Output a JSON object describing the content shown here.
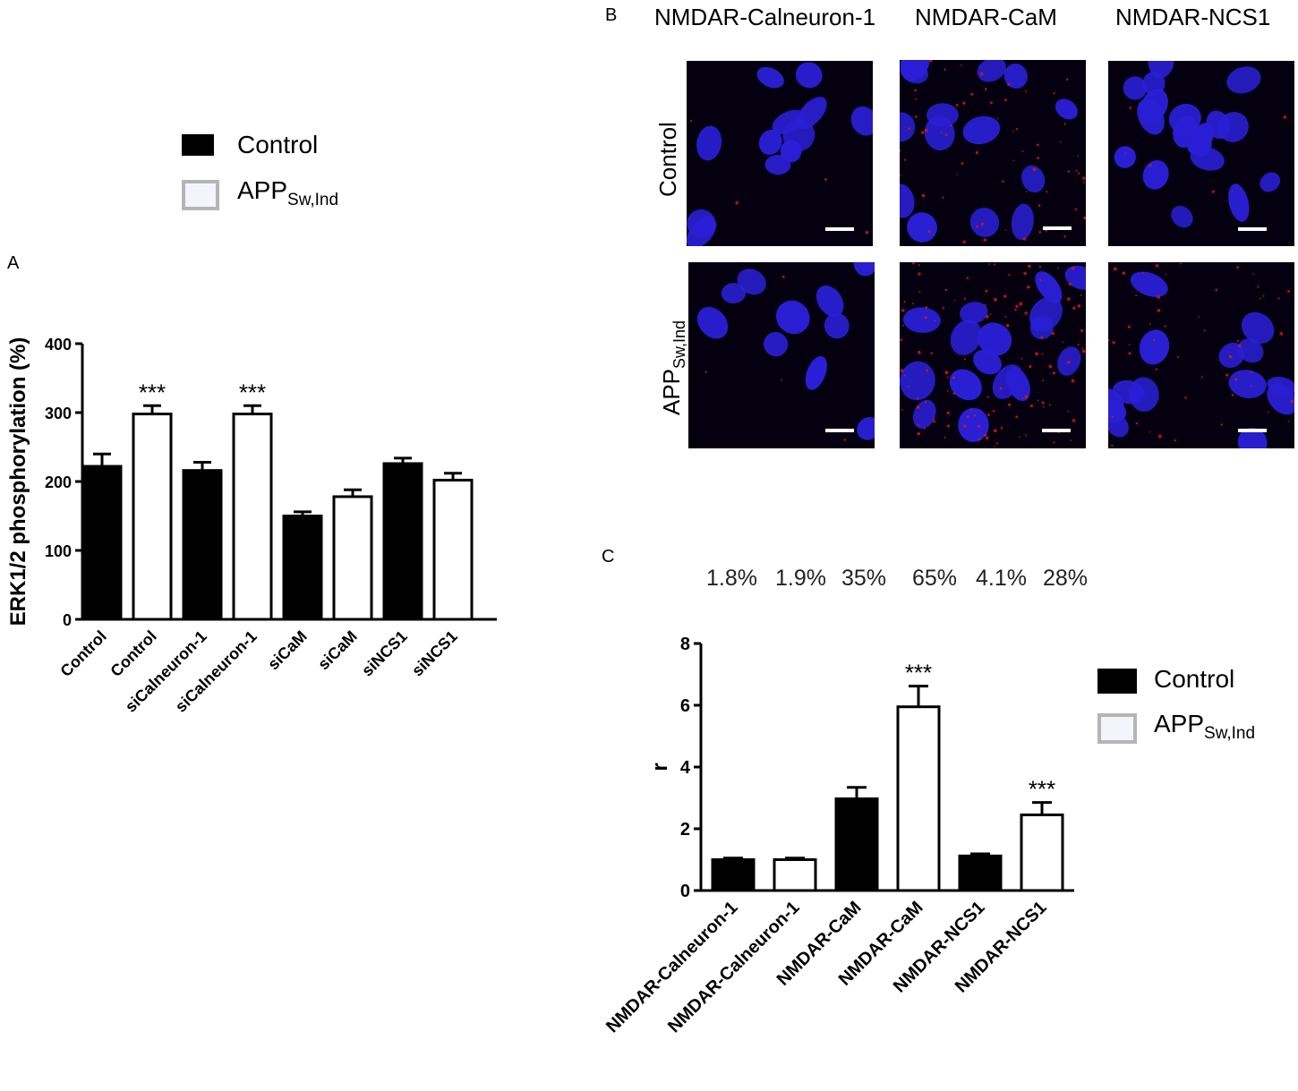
{
  "panels": {
    "a_letter": "A",
    "b_letter": "B",
    "c_letter": "C"
  },
  "legend": {
    "control": "Control",
    "app_main": "APP",
    "app_sub": "Sw,Ind",
    "control_color": "#000000",
    "app_fill": "#f4f4fb",
    "app_border": "#b5b5b5"
  },
  "images": {
    "columns": [
      "NMDAR-Calneuron-1",
      "NMDAR-CaM",
      "NMDAR-NCS1"
    ],
    "rows": [
      "Control",
      "APP"
    ],
    "row_app_sub": "Sw,Ind",
    "nucleus_color": "#2a1fd6",
    "signal_color": "#d81818"
  },
  "percentages": [
    "1.8%",
    "1.9%",
    "35%",
    "65%",
    "4.1%",
    "28%"
  ],
  "chart_data": [
    {
      "type": "bar",
      "title": "",
      "xlabel": "",
      "ylabel": "ERK1/2 phosphorylation (%)",
      "ylim": [
        0,
        400
      ],
      "yticks": [
        0,
        100,
        200,
        300,
        400
      ],
      "categories": [
        "Control",
        "Control",
        "siCalneuron-1",
        "siCalneuron-1",
        "siCaM",
        "siCaM",
        "siNCS1",
        "siNCS1"
      ],
      "groups": [
        "Control",
        "APP",
        "Control",
        "APP",
        "Control",
        "APP",
        "Control",
        "APP"
      ],
      "values": [
        222,
        298,
        216,
        298,
        150,
        178,
        226,
        202
      ],
      "errors": [
        18,
        12,
        12,
        12,
        6,
        10,
        8,
        10
      ],
      "annotations": [
        "",
        "***",
        "",
        "***",
        "",
        "",
        "",
        ""
      ]
    },
    {
      "type": "bar",
      "title": "",
      "xlabel": "",
      "ylabel": "r",
      "ylim": [
        0,
        8
      ],
      "yticks": [
        0,
        2,
        4,
        6,
        8
      ],
      "categories": [
        "NMDAR-Calneuron-1",
        "NMDAR-Calneuron-1",
        "NMDAR-CaM",
        "NMDAR-CaM",
        "NMDAR-NCS1",
        "NMDAR-NCS1"
      ],
      "groups": [
        "Control",
        "APP",
        "Control",
        "APP",
        "Control",
        "APP"
      ],
      "values": [
        1.0,
        1.0,
        2.97,
        5.95,
        1.12,
        2.45
      ],
      "errors": [
        0.05,
        0.05,
        0.37,
        0.67,
        0.07,
        0.4
      ],
      "annotations": [
        "",
        "",
        "",
        "***",
        "",
        "***"
      ]
    }
  ]
}
